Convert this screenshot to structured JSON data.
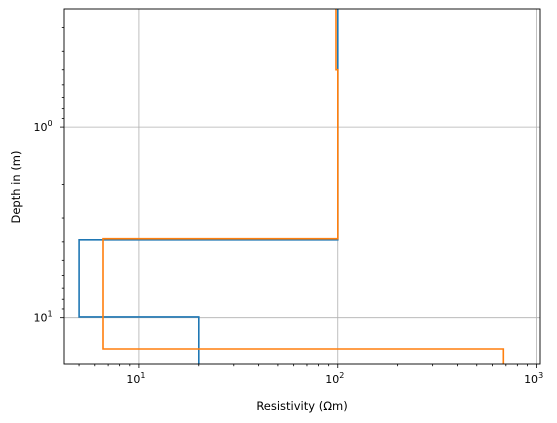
{
  "chart_data": {
    "type": "line",
    "title": "",
    "xlabel": "Resistivity (Ωm)",
    "ylabel": "Depth in (m)",
    "xscale": "log",
    "yscale": "log",
    "yinverted": true,
    "xlim": [
      4.2,
      1040
    ],
    "ylim": [
      0.24,
      17.5
    ],
    "grid": true,
    "legend": "none",
    "x_major_ticks": [
      {
        "value": 10,
        "base": "10",
        "exp": "1"
      },
      {
        "value": 100,
        "base": "10",
        "exp": "2"
      },
      {
        "value": 1000,
        "base": "10",
        "exp": "3"
      }
    ],
    "y_major_ticks": [
      {
        "value": 1,
        "base": "10",
        "exp": "0"
      },
      {
        "value": 10,
        "base": "10",
        "exp": "1"
      }
    ],
    "series": [
      {
        "color": "#1f77b4",
        "x": [
          100,
          100,
          5,
          5,
          20,
          20
        ],
        "y": [
          0.24,
          3.9,
          3.9,
          9.9,
          9.9,
          17.5
        ]
      },
      {
        "color": "#ff7f0e",
        "x": [
          98,
          98,
          100,
          100,
          6.6,
          6.6,
          680,
          680
        ],
        "y": [
          0.24,
          0.5,
          0.5,
          3.85,
          3.85,
          14.6,
          14.6,
          17.5
        ]
      }
    ]
  }
}
